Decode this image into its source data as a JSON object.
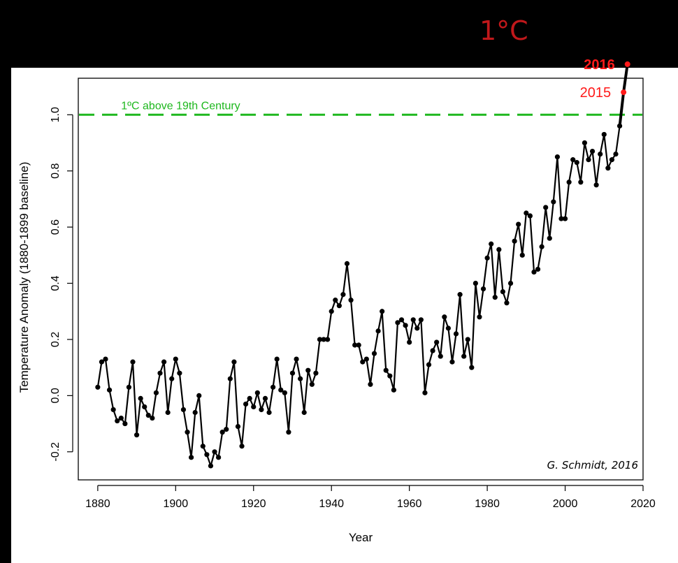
{
  "header": {
    "label": "1°C"
  },
  "credit": "G. Schmidt, 2016",
  "colors": {
    "series": "#000000",
    "threshold": "#1fb81f",
    "highlight": "#ff1a1a",
    "header": "#c0181b"
  },
  "chart_data": {
    "type": "line",
    "title": "",
    "xlabel": "Year",
    "ylabel": "Temperature Anomaly (1880-1899 baseline)",
    "xlim": [
      1875,
      2020
    ],
    "ylim": [
      -0.3,
      1.13
    ],
    "x_ticks": [
      1880,
      1900,
      1920,
      1940,
      1960,
      1980,
      2000,
      2020
    ],
    "y_ticks": [
      -0.2,
      0.0,
      0.2,
      0.4,
      0.6,
      0.8,
      1.0
    ],
    "y_tick_labels": [
      "-0.2",
      "0.0",
      "0.2",
      "0.4",
      "0.6",
      "0.8",
      "1.0"
    ],
    "grid": false,
    "series": [
      {
        "x": [
          1880,
          1881,
          1882,
          1883,
          1884,
          1885,
          1886,
          1887,
          1888,
          1889,
          1890,
          1891,
          1892,
          1893,
          1894,
          1895,
          1896,
          1897,
          1898,
          1899,
          1900,
          1901,
          1902,
          1903,
          1904,
          1905,
          1906,
          1907,
          1908,
          1909,
          1910,
          1911,
          1912,
          1913,
          1914,
          1915,
          1916,
          1917,
          1918,
          1919,
          1920,
          1921,
          1922,
          1923,
          1924,
          1925,
          1926,
          1927,
          1928,
          1929,
          1930,
          1931,
          1932,
          1933,
          1934,
          1935,
          1936,
          1937,
          1938,
          1939,
          1940,
          1941,
          1942,
          1943,
          1944,
          1945,
          1946,
          1947,
          1948,
          1949,
          1950,
          1951,
          1952,
          1953,
          1954,
          1955,
          1956,
          1957,
          1958,
          1959,
          1960,
          1961,
          1962,
          1963,
          1964,
          1965,
          1966,
          1967,
          1968,
          1969,
          1970,
          1971,
          1972,
          1973,
          1974,
          1975,
          1976,
          1977,
          1978,
          1979,
          1980,
          1981,
          1982,
          1983,
          1984,
          1985,
          1986,
          1987,
          1988,
          1989,
          1990,
          1991,
          1992,
          1993,
          1994,
          1995,
          1996,
          1997,
          1998,
          1999,
          2000,
          2001,
          2002,
          2003,
          2004,
          2005,
          2006,
          2007,
          2008,
          2009,
          2010,
          2011,
          2012,
          2013,
          2014
        ],
        "values": [
          0.03,
          0.12,
          0.13,
          0.02,
          -0.05,
          -0.09,
          -0.08,
          -0.1,
          0.03,
          0.12,
          -0.14,
          -0.01,
          -0.04,
          -0.07,
          -0.08,
          0.01,
          0.08,
          0.12,
          -0.06,
          0.06,
          0.13,
          0.08,
          -0.05,
          -0.13,
          -0.22,
          -0.06,
          0.0,
          -0.18,
          -0.21,
          -0.25,
          -0.2,
          -0.22,
          -0.13,
          -0.12,
          0.06,
          0.12,
          -0.11,
          -0.18,
          -0.03,
          -0.01,
          -0.04,
          0.01,
          -0.05,
          -0.01,
          -0.06,
          0.03,
          0.13,
          0.02,
          0.01,
          -0.13,
          0.08,
          0.13,
          0.06,
          -0.06,
          0.09,
          0.04,
          0.08,
          0.2,
          0.2,
          0.2,
          0.3,
          0.34,
          0.32,
          0.36,
          0.47,
          0.34,
          0.18,
          0.18,
          0.12,
          0.13,
          0.04,
          0.15,
          0.23,
          0.3,
          0.09,
          0.07,
          0.02,
          0.26,
          0.27,
          0.25,
          0.19,
          0.27,
          0.24,
          0.27,
          0.01,
          0.11,
          0.16,
          0.19,
          0.14,
          0.28,
          0.24,
          0.12,
          0.22,
          0.36,
          0.14,
          0.2,
          0.1,
          0.4,
          0.28,
          0.38,
          0.49,
          0.54,
          0.35,
          0.52,
          0.37,
          0.33,
          0.4,
          0.55,
          0.61,
          0.5,
          0.65,
          0.64,
          0.44,
          0.45,
          0.53,
          0.67,
          0.56,
          0.69,
          0.85,
          0.63,
          0.63,
          0.76,
          0.84,
          0.83,
          0.76,
          0.9,
          0.84,
          0.87,
          0.75,
          0.86,
          0.93,
          0.81,
          0.84,
          0.86,
          0.96
        ]
      }
    ],
    "highlights": [
      {
        "label": "2015",
        "x": 2015,
        "value": 1.08
      },
      {
        "label": "2016",
        "x": 2016,
        "value": 1.18
      }
    ],
    "reference_line": {
      "value": 1.0,
      "label": "1ºC above 19th Century",
      "style": "dashed"
    }
  }
}
